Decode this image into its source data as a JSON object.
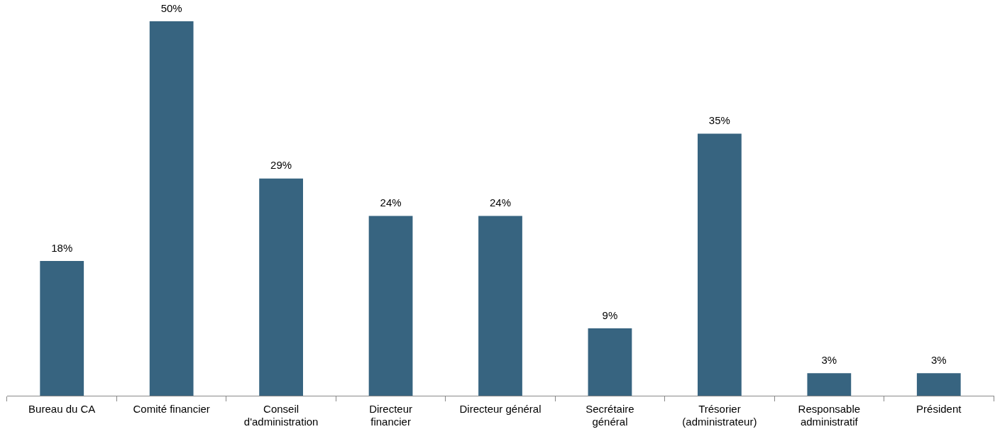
{
  "chart_data": {
    "type": "bar",
    "categories": [
      "Bureau du CA",
      "Comité financier",
      "Conseil\nd'administration",
      "Directeur\nfinancier",
      "Directeur général",
      "Secrétaire\ngénéral",
      "Trésorier\n(administrateur)",
      "Responsable\nadministratif",
      "Président"
    ],
    "values": [
      18,
      50,
      29,
      24,
      24,
      9,
      35,
      3,
      3
    ],
    "value_labels": [
      "18%",
      "50%",
      "29%",
      "24%",
      "24%",
      "9%",
      "35%",
      "3%",
      "3%"
    ],
    "color": "#376480",
    "grid": false,
    "legend": false,
    "tick_labels": "x"
  }
}
